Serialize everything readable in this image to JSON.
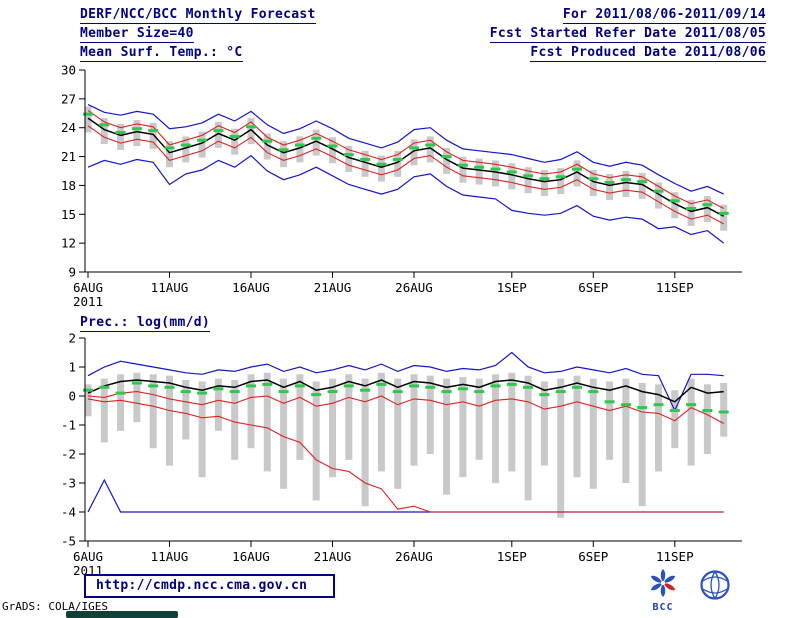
{
  "header": {
    "title": "DERF/NCC/BCC Monthly Forecast",
    "member_size": "Member Size=40",
    "date_range": "For 2011/08/06-2011/09/14",
    "refer_date": "Fcst Started Refer Date 2011/08/05",
    "produced_date": "Fcst Produced Date 2011/08/06"
  },
  "footer": {
    "url": "http://cmdp.ncc.cma.gov.cn",
    "credit": "GrADS: COLA/IGES",
    "bcc_label": "BCC"
  },
  "chart_data": [
    {
      "type": "line",
      "title": "Mean Surf. Temp.: °C",
      "ylim": [
        9,
        30
      ],
      "yticks": [
        30,
        27,
        24,
        21,
        18,
        15,
        12,
        9
      ],
      "n_days": 40,
      "xticks": [
        {
          "day": 1,
          "label": "6AUG",
          "sublabel": "2011"
        },
        {
          "day": 6,
          "label": "11AUG"
        },
        {
          "day": 11,
          "label": "16AUG"
        },
        {
          "day": 16,
          "label": "21AUG"
        },
        {
          "day": 21,
          "label": "26AUG"
        },
        {
          "day": 27,
          "label": "1SEP"
        },
        {
          "day": 32,
          "label": "6SEP"
        },
        {
          "day": 37,
          "label": "11SEP"
        }
      ],
      "boxes": {
        "color": "#c9c9c9",
        "top": [
          26.2,
          25.0,
          24.4,
          24.8,
          24.5,
          22.6,
          23.1,
          23.6,
          24.6,
          23.9,
          25.0,
          23.4,
          22.6,
          23.1,
          23.8,
          23.0,
          22.1,
          21.6,
          21.1,
          21.6,
          22.8,
          23.1,
          21.9,
          21.0,
          20.8,
          20.6,
          20.3,
          19.9,
          19.6,
          19.8,
          20.6,
          19.6,
          19.2,
          19.5,
          19.3,
          18.3,
          17.3,
          16.5,
          16.9,
          16.0
        ],
        "bottom": [
          23.5,
          22.3,
          21.7,
          22.1,
          21.8,
          19.9,
          20.4,
          20.9,
          21.9,
          21.2,
          22.3,
          20.7,
          19.9,
          20.4,
          21.1,
          20.3,
          19.4,
          18.9,
          18.4,
          18.9,
          20.1,
          20.4,
          19.2,
          18.3,
          18.1,
          17.9,
          17.6,
          17.2,
          16.9,
          17.1,
          17.9,
          16.9,
          16.5,
          16.8,
          16.6,
          15.6,
          14.6,
          13.8,
          14.2,
          13.3
        ]
      },
      "series": [
        {
          "name": "ensemble-max",
          "color": "#1414cc",
          "width": 1.2,
          "values": [
            26.4,
            25.6,
            25.3,
            25.7,
            25.4,
            23.9,
            24.1,
            24.5,
            25.4,
            24.7,
            25.7,
            24.3,
            23.4,
            23.9,
            24.7,
            23.9,
            22.9,
            22.4,
            21.9,
            22.5,
            23.8,
            24.0,
            22.7,
            21.8,
            21.6,
            21.4,
            21.2,
            20.8,
            20.4,
            20.7,
            21.5,
            20.4,
            20.0,
            20.4,
            20.1,
            19.1,
            18.2,
            17.4,
            17.9,
            17.1
          ]
        },
        {
          "name": "ensemble-min",
          "color": "#1414cc",
          "width": 1.2,
          "values": [
            19.9,
            20.6,
            20.2,
            20.7,
            20.4,
            18.1,
            19.2,
            19.6,
            20.6,
            19.9,
            21.1,
            19.5,
            18.6,
            19.1,
            19.9,
            19.0,
            18.1,
            17.6,
            17.1,
            17.6,
            18.9,
            19.2,
            17.9,
            17.0,
            16.8,
            16.6,
            15.4,
            15.1,
            14.9,
            15.1,
            15.9,
            14.8,
            14.4,
            14.7,
            14.5,
            13.5,
            13.7,
            12.9,
            13.3,
            12.0
          ]
        },
        {
          "name": "upper-std",
          "color": "#e02020",
          "width": 1.1,
          "values": [
            25.8,
            24.6,
            24.0,
            24.4,
            24.1,
            22.2,
            22.7,
            23.2,
            24.2,
            23.5,
            24.6,
            23.0,
            22.2,
            22.7,
            23.4,
            22.6,
            21.7,
            21.2,
            20.7,
            21.2,
            22.4,
            22.7,
            21.5,
            20.6,
            20.4,
            20.2,
            19.9,
            19.5,
            19.2,
            19.4,
            20.2,
            19.2,
            18.8,
            19.1,
            18.9,
            17.9,
            16.9,
            16.1,
            16.5,
            15.6
          ]
        },
        {
          "name": "lower-std",
          "color": "#e02020",
          "width": 1.1,
          "values": [
            24.2,
            23.0,
            22.4,
            22.8,
            22.5,
            20.6,
            21.1,
            21.6,
            22.6,
            21.9,
            23.0,
            21.4,
            20.6,
            21.1,
            21.8,
            21.0,
            20.1,
            19.6,
            19.1,
            19.6,
            20.8,
            21.1,
            19.9,
            19.0,
            18.8,
            18.6,
            18.3,
            17.9,
            17.6,
            17.8,
            18.6,
            17.6,
            17.2,
            17.5,
            17.3,
            16.3,
            15.3,
            14.5,
            14.9,
            14.0
          ]
        },
        {
          "name": "ensemble-mean",
          "color": "#000000",
          "width": 1.5,
          "values": [
            25.0,
            23.8,
            23.2,
            23.6,
            23.3,
            21.4,
            21.9,
            22.4,
            23.4,
            22.7,
            23.8,
            22.2,
            21.4,
            21.9,
            22.6,
            21.8,
            20.9,
            20.4,
            19.9,
            20.4,
            21.6,
            21.9,
            20.7,
            19.8,
            19.6,
            19.4,
            19.1,
            18.7,
            18.4,
            18.6,
            19.4,
            18.4,
            18.0,
            18.3,
            18.1,
            17.1,
            16.1,
            15.3,
            15.7,
            14.8
          ]
        }
      ],
      "dashes": {
        "name": "climatology",
        "color": "#2ec84c",
        "values": [
          25.4,
          24.3,
          23.5,
          23.9,
          23.7,
          21.9,
          22.2,
          22.7,
          23.7,
          23.1,
          24.1,
          22.6,
          21.7,
          22.2,
          22.9,
          22.1,
          21.2,
          20.7,
          20.2,
          20.7,
          21.9,
          22.2,
          21.0,
          20.1,
          19.9,
          19.7,
          19.4,
          19.0,
          18.7,
          18.9,
          19.7,
          18.7,
          18.3,
          18.6,
          18.4,
          17.4,
          16.4,
          15.6,
          16.0,
          15.1
        ]
      }
    },
    {
      "type": "line",
      "title": "Prec.: log(mm/d)",
      "ylim": [
        -5,
        2
      ],
      "yticks": [
        2,
        1,
        0,
        -1,
        -2,
        -3,
        -4,
        -5
      ],
      "n_days": 40,
      "xticks": [
        {
          "day": 1,
          "label": "6AUG",
          "sublabel": "2011"
        },
        {
          "day": 6,
          "label": "11AUG"
        },
        {
          "day": 11,
          "label": "16AUG"
        },
        {
          "day": 16,
          "label": "21AUG"
        },
        {
          "day": 21,
          "label": "26AUG"
        },
        {
          "day": 27,
          "label": "1SEP"
        },
        {
          "day": 32,
          "label": "6SEP"
        },
        {
          "day": 37,
          "label": "11SEP"
        }
      ],
      "boxes": {
        "color": "#c9c9c9",
        "top": [
          0.4,
          0.6,
          0.75,
          0.8,
          0.75,
          0.7,
          0.55,
          0.5,
          0.6,
          0.55,
          0.75,
          0.8,
          0.6,
          0.75,
          0.5,
          0.6,
          0.75,
          0.6,
          0.8,
          0.6,
          0.75,
          0.7,
          0.6,
          0.65,
          0.6,
          0.75,
          0.8,
          0.7,
          0.5,
          0.6,
          0.7,
          0.6,
          0.5,
          0.6,
          0.45,
          0.4,
          0.2,
          0.6,
          0.4,
          0.45
        ],
        "bottom": [
          -0.7,
          -1.6,
          -1.2,
          -0.9,
          -1.8,
          -2.4,
          -1.5,
          -2.8,
          -1.2,
          -2.2,
          -1.8,
          -2.6,
          -3.2,
          -2.2,
          -3.6,
          -2.8,
          -2.2,
          -3.8,
          -2.6,
          -3.2,
          -2.4,
          -2.0,
          -3.4,
          -2.8,
          -2.2,
          -3.0,
          -2.6,
          -3.6,
          -2.4,
          -4.2,
          -2.8,
          -3.2,
          -2.2,
          -3.0,
          -3.8,
          -2.6,
          -1.8,
          -2.4,
          -2.0,
          -1.4
        ]
      },
      "series": [
        {
          "name": "ensemble-max",
          "color": "#1414cc",
          "width": 1.2,
          "values": [
            0.7,
            1.0,
            1.2,
            1.1,
            1.0,
            0.9,
            0.8,
            0.75,
            0.9,
            0.85,
            1.0,
            1.1,
            0.85,
            1.0,
            0.8,
            0.9,
            1.05,
            0.9,
            1.1,
            0.85,
            1.05,
            1.0,
            0.85,
            0.95,
            0.9,
            1.05,
            1.5,
            1.0,
            0.8,
            0.85,
            1.0,
            0.9,
            0.8,
            0.95,
            0.75,
            0.7,
            -0.5,
            0.75,
            0.75,
            0.7
          ]
        },
        {
          "name": "ensemble-min",
          "color": "#1414cc",
          "width": 1.2,
          "values": [
            -4.0,
            -2.9,
            -4.0,
            -4.0,
            -4.0,
            -4.0,
            -4.0,
            -4.0,
            -4.0,
            -4.0,
            -4.0,
            -4.0,
            -4.0,
            -4.0,
            -4.0,
            -4.0,
            -4.0,
            -4.0,
            -4.0,
            -4.0,
            -4.0,
            -4.0,
            -4.0,
            -4.0,
            -4.0,
            -4.0,
            -4.0,
            -4.0,
            -4.0,
            -4.0,
            -4.0,
            -4.0,
            -4.0,
            -4.0,
            -4.0,
            -4.0,
            -4.0,
            -4.0,
            -4.0,
            -4.0
          ]
        },
        {
          "name": "upper-std",
          "color": "#e02020",
          "width": 1.1,
          "values": [
            0.0,
            -0.05,
            0.1,
            0.15,
            0.05,
            -0.1,
            -0.2,
            -0.3,
            -0.15,
            -0.25,
            -0.05,
            0.0,
            -0.25,
            -0.05,
            -0.35,
            -0.25,
            -0.05,
            -0.2,
            0.0,
            -0.3,
            -0.1,
            -0.15,
            -0.3,
            -0.2,
            -0.35,
            -0.15,
            -0.1,
            -0.2,
            -0.45,
            -0.35,
            -0.2,
            -0.35,
            -0.5,
            -0.35,
            -0.55,
            -0.6,
            -0.85,
            -0.4,
            -0.65,
            -0.95
          ]
        },
        {
          "name": "lower-std",
          "color": "#e02020",
          "width": 1.1,
          "values": [
            -0.1,
            -0.2,
            -0.15,
            -0.25,
            -0.35,
            -0.5,
            -0.6,
            -0.75,
            -0.7,
            -0.9,
            -1.0,
            -1.1,
            -1.4,
            -1.6,
            -2.2,
            -2.5,
            -2.6,
            -3.0,
            -3.2,
            -3.9,
            -3.8,
            -4.0,
            -4.0,
            -4.0,
            -4.0,
            -4.0,
            -4.0,
            -4.0,
            -4.0,
            -4.0,
            -4.0,
            -4.0,
            -4.0,
            -4.0,
            -4.0,
            -4.0,
            -4.0,
            -4.0,
            -4.0,
            -4.0
          ]
        },
        {
          "name": "ensemble-mean",
          "color": "#000000",
          "width": 1.5,
          "values": [
            0.1,
            0.35,
            0.5,
            0.55,
            0.5,
            0.45,
            0.3,
            0.2,
            0.35,
            0.3,
            0.5,
            0.55,
            0.3,
            0.5,
            0.2,
            0.3,
            0.5,
            0.35,
            0.55,
            0.3,
            0.5,
            0.45,
            0.3,
            0.4,
            0.3,
            0.5,
            0.55,
            0.45,
            0.2,
            0.3,
            0.45,
            0.3,
            0.2,
            0.35,
            0.15,
            0.05,
            -0.2,
            0.3,
            0.1,
            0.15
          ]
        }
      ],
      "dashes": {
        "name": "climatology",
        "color": "#2ec84c",
        "values": [
          0.2,
          0.3,
          0.1,
          0.45,
          0.35,
          0.3,
          0.15,
          0.1,
          0.25,
          0.15,
          0.35,
          0.4,
          0.15,
          0.35,
          0.05,
          0.15,
          0.35,
          0.2,
          0.4,
          0.15,
          0.35,
          0.3,
          0.15,
          0.25,
          0.15,
          0.35,
          0.4,
          0.3,
          0.05,
          0.15,
          0.3,
          0.15,
          -0.2,
          -0.3,
          -0.4,
          -0.3,
          -0.5,
          -0.3,
          -0.5,
          -0.55
        ]
      }
    }
  ]
}
